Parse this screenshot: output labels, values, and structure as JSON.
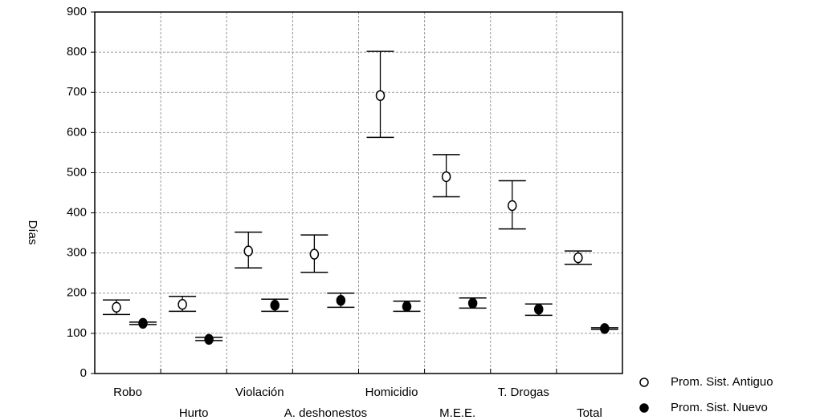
{
  "chart_data": {
    "type": "errorbar",
    "ylabel": "Días",
    "categories": [
      "Robo",
      "Hurto",
      "Violación",
      "A. deshonestos",
      "Homicidio",
      "M.E.E.",
      "T. Drogas",
      "Total"
    ],
    "series": [
      {
        "name": "Prom. Sist. Antiguo",
        "color": "#000000",
        "marker": "open",
        "values": [
          165,
          172,
          305,
          297,
          692,
          490,
          418,
          288
        ],
        "lower": [
          147,
          155,
          263,
          252,
          588,
          440,
          360,
          272
        ],
        "upper": [
          183,
          192,
          352,
          345,
          802,
          545,
          480,
          305
        ]
      },
      {
        "name": "Prom. Sist. Nuevo",
        "color": "#000000",
        "marker": "filled",
        "values": [
          125,
          85,
          170,
          182,
          167,
          175,
          160,
          112
        ],
        "lower": [
          122,
          82,
          155,
          165,
          155,
          163,
          145,
          110
        ],
        "upper": [
          128,
          90,
          185,
          200,
          180,
          188,
          173,
          114
        ]
      }
    ],
    "ylim": [
      0,
      900
    ],
    "yticks": [
      0,
      100,
      200,
      300,
      400,
      500,
      600,
      700,
      800,
      900
    ],
    "grid": true,
    "legend": "lower right"
  }
}
